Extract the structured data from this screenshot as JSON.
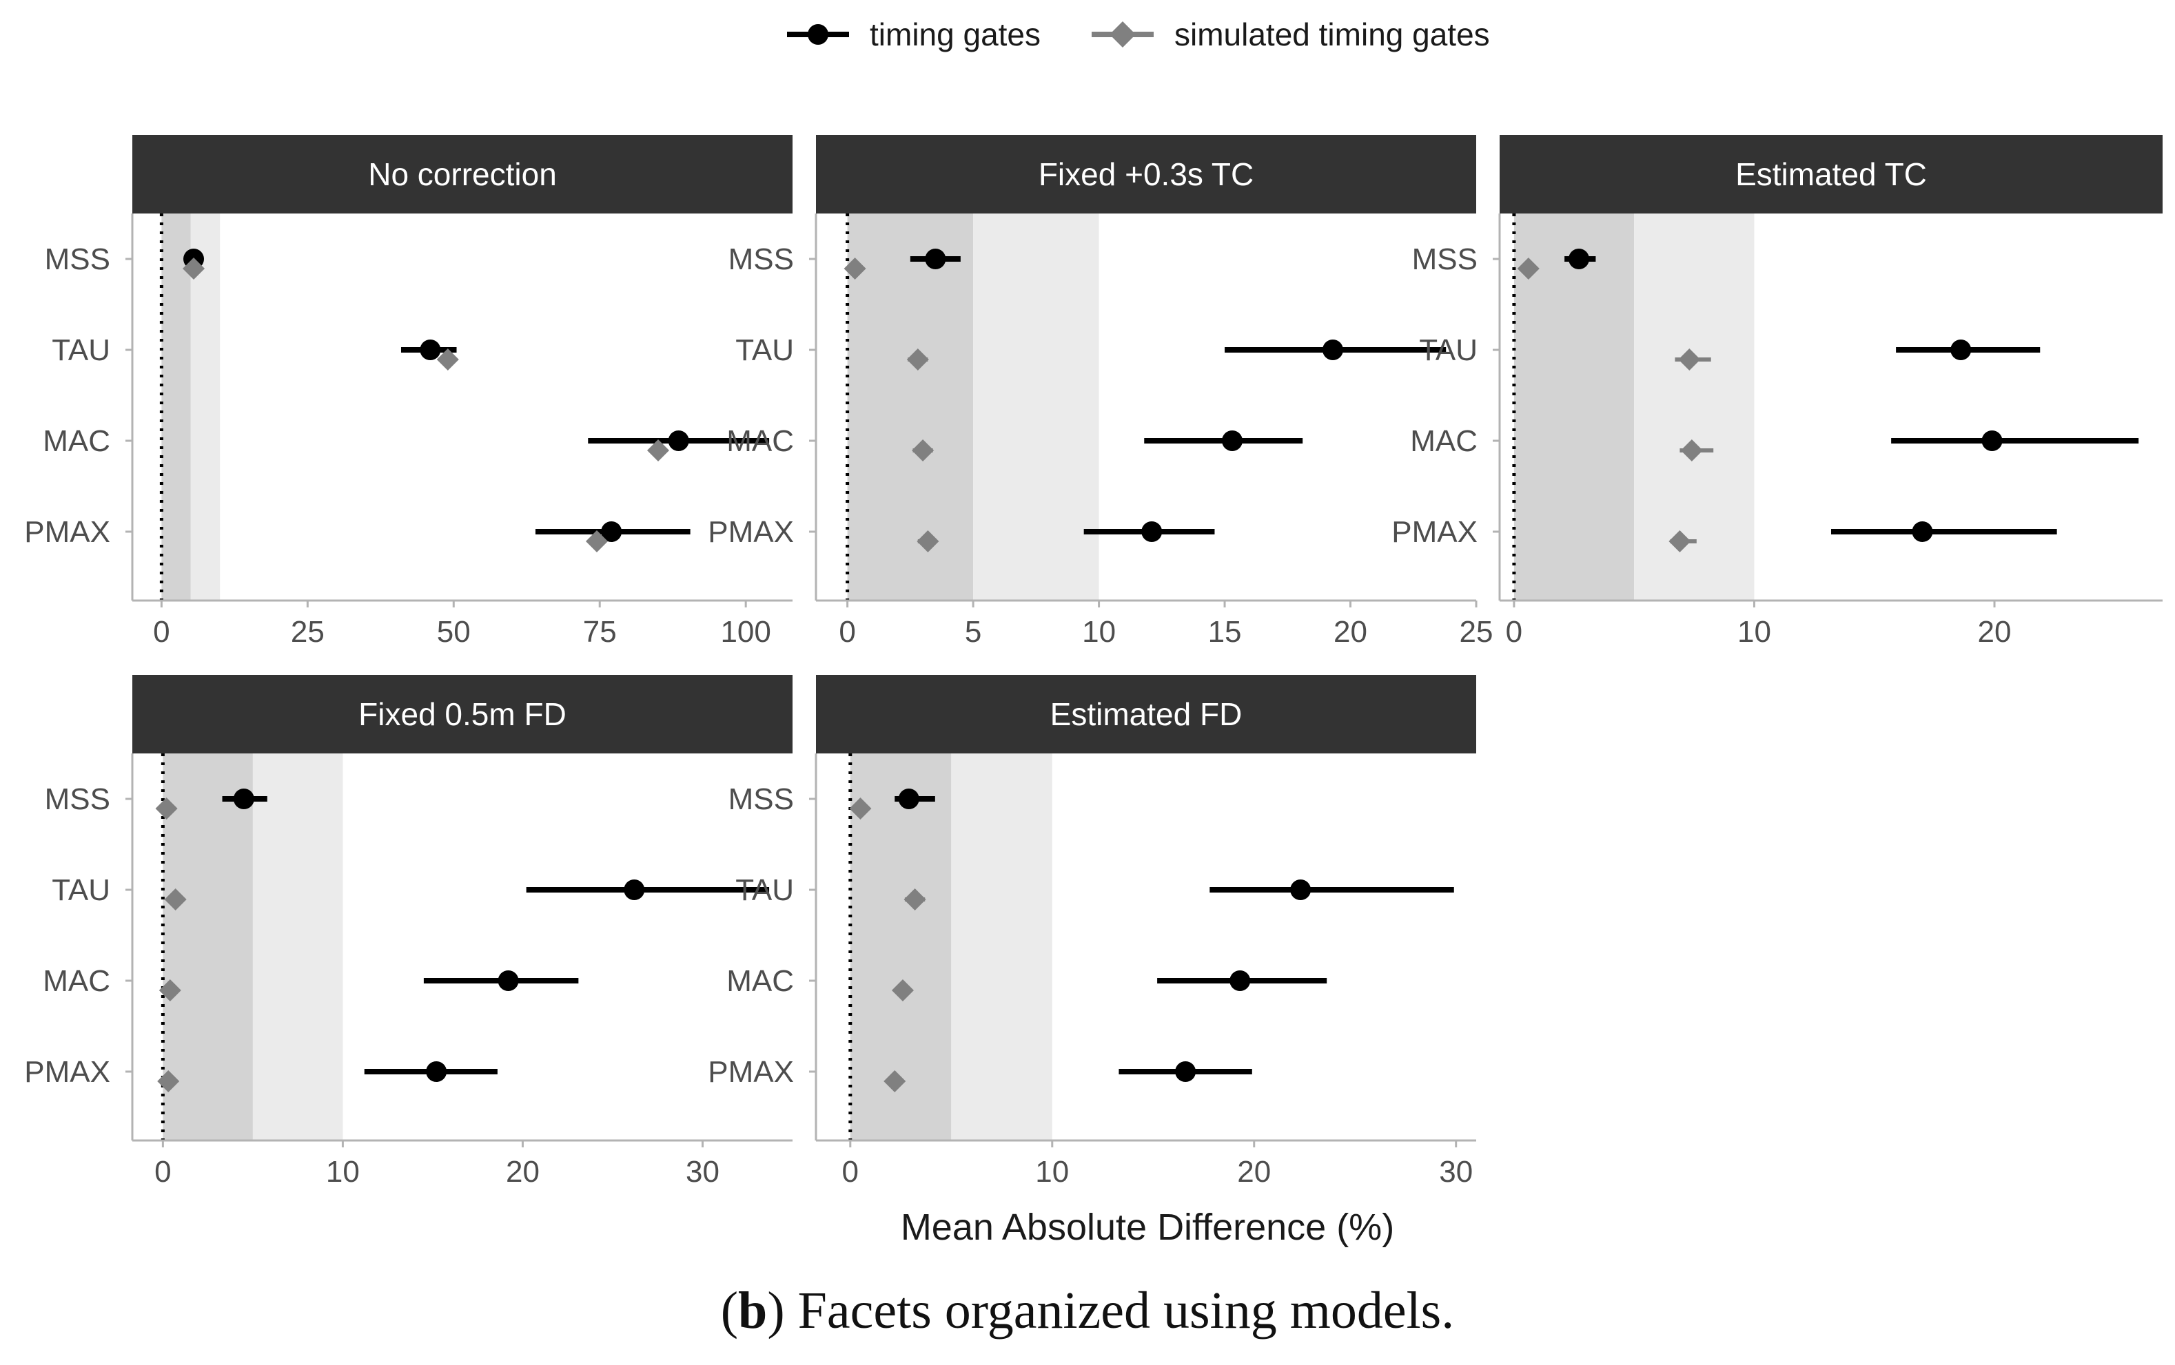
{
  "chart_data": {
    "type": "forest",
    "caption": {
      "prefix": "(",
      "label": "b",
      "suffix": ") Facets organized using models."
    },
    "xlabel": "Mean Absolute Difference (%)",
    "legend": {
      "position": "top",
      "entries": [
        {
          "name": "timing gates",
          "marker": "circle",
          "color": "#000000"
        },
        {
          "name": "simulated timing gates",
          "marker": "diamond",
          "color": "#808080"
        }
      ]
    },
    "categories": [
      "MSS",
      "TAU",
      "MAC",
      "PMAX"
    ],
    "reference_bands": [
      {
        "from": 0,
        "to": 5,
        "color": "#d3d3d3"
      },
      {
        "from": 5,
        "to": 10,
        "color": "#ebebeb"
      }
    ],
    "reference_line": 0,
    "panels": [
      {
        "title": "No correction",
        "xlim": [
          -5,
          108
        ],
        "xticks": [
          0,
          25,
          50,
          75,
          100
        ],
        "series": [
          {
            "name": "timing gates",
            "points": [
              {
                "category": "MSS",
                "value": 5.5,
                "low": 5.0,
                "high": 6.0
              },
              {
                "category": "TAU",
                "value": 46.0,
                "low": 41.0,
                "high": 50.5
              },
              {
                "category": "MAC",
                "value": 88.5,
                "low": 73.0,
                "high": 104.0
              },
              {
                "category": "PMAX",
                "value": 77.0,
                "low": 64.0,
                "high": 90.5
              }
            ]
          },
          {
            "name": "simulated timing gates",
            "points": [
              {
                "category": "MSS",
                "value": 5.5,
                "low": 5.3,
                "high": 5.7
              },
              {
                "category": "TAU",
                "value": 49.0,
                "low": 48.7,
                "high": 49.3
              },
              {
                "category": "MAC",
                "value": 85.0,
                "low": 84.7,
                "high": 85.3
              },
              {
                "category": "PMAX",
                "value": 74.5,
                "low": 74.2,
                "high": 74.8
              }
            ]
          }
        ]
      },
      {
        "title": "Fixed +0.3s TC",
        "xlim": [
          -1.25,
          25
        ],
        "xticks": [
          0,
          5,
          10,
          15,
          20,
          25
        ],
        "series": [
          {
            "name": "timing gates",
            "points": [
              {
                "category": "MSS",
                "value": 3.5,
                "low": 2.5,
                "high": 4.5
              },
              {
                "category": "TAU",
                "value": 19.3,
                "low": 15.0,
                "high": 23.8
              },
              {
                "category": "MAC",
                "value": 15.3,
                "low": 11.8,
                "high": 18.1
              },
              {
                "category": "PMAX",
                "value": 12.1,
                "low": 9.4,
                "high": 14.6
              }
            ]
          },
          {
            "name": "simulated timing gates",
            "points": [
              {
                "category": "MSS",
                "value": 0.3,
                "low": 0.2,
                "high": 0.4
              },
              {
                "category": "TAU",
                "value": 2.8,
                "low": 2.4,
                "high": 3.2
              },
              {
                "category": "MAC",
                "value": 3.0,
                "low": 2.6,
                "high": 3.4
              },
              {
                "category": "PMAX",
                "value": 3.2,
                "low": 2.8,
                "high": 3.5
              }
            ]
          }
        ]
      },
      {
        "title": "Estimated TC",
        "xlim": [
          -0.6,
          27
        ],
        "xticks": [
          0,
          10,
          20
        ],
        "series": [
          {
            "name": "timing gates",
            "points": [
              {
                "category": "MSS",
                "value": 2.7,
                "low": 2.1,
                "high": 3.4
              },
              {
                "category": "TAU",
                "value": 18.6,
                "low": 15.9,
                "high": 21.9
              },
              {
                "category": "MAC",
                "value": 19.9,
                "low": 15.7,
                "high": 26.0
              },
              {
                "category": "PMAX",
                "value": 17.0,
                "low": 13.2,
                "high": 22.6
              }
            ]
          },
          {
            "name": "simulated timing gates",
            "points": [
              {
                "category": "MSS",
                "value": 0.6,
                "low": 0.5,
                "high": 0.7
              },
              {
                "category": "TAU",
                "value": 7.3,
                "low": 6.7,
                "high": 8.2
              },
              {
                "category": "MAC",
                "value": 7.4,
                "low": 6.9,
                "high": 8.3
              },
              {
                "category": "PMAX",
                "value": 6.9,
                "low": 6.5,
                "high": 7.6
              }
            ]
          }
        ]
      },
      {
        "title": "Fixed 0.5m FD",
        "xlim": [
          -1.7,
          35
        ],
        "xticks": [
          0,
          10,
          20,
          30
        ],
        "series": [
          {
            "name": "timing gates",
            "points": [
              {
                "category": "MSS",
                "value": 4.5,
                "low": 3.3,
                "high": 5.8
              },
              {
                "category": "TAU",
                "value": 26.2,
                "low": 20.2,
                "high": 33.7
              },
              {
                "category": "MAC",
                "value": 19.2,
                "low": 14.5,
                "high": 23.1
              },
              {
                "category": "PMAX",
                "value": 15.2,
                "low": 11.2,
                "high": 18.6
              }
            ]
          },
          {
            "name": "simulated timing gates",
            "points": [
              {
                "category": "MSS",
                "value": 0.2,
                "low": 0.1,
                "high": 0.3
              },
              {
                "category": "TAU",
                "value": 0.7,
                "low": 0.6,
                "high": 0.8
              },
              {
                "category": "MAC",
                "value": 0.4,
                "low": 0.3,
                "high": 0.5
              },
              {
                "category": "PMAX",
                "value": 0.3,
                "low": 0.2,
                "high": 0.4
              }
            ]
          }
        ]
      },
      {
        "title": "Estimated FD",
        "xlim": [
          -1.7,
          31
        ],
        "xticks": [
          0,
          10,
          20,
          30
        ],
        "series": [
          {
            "name": "timing gates",
            "points": [
              {
                "category": "MSS",
                "value": 2.9,
                "low": 2.2,
                "high": 4.2
              },
              {
                "category": "TAU",
                "value": 22.3,
                "low": 17.8,
                "high": 29.9
              },
              {
                "category": "MAC",
                "value": 19.3,
                "low": 15.2,
                "high": 23.6
              },
              {
                "category": "PMAX",
                "value": 16.6,
                "low": 13.3,
                "high": 19.9
              }
            ]
          },
          {
            "name": "simulated timing gates",
            "points": [
              {
                "category": "MSS",
                "value": 0.5,
                "low": 0.4,
                "high": 0.6
              },
              {
                "category": "TAU",
                "value": 3.2,
                "low": 2.7,
                "high": 3.7
              },
              {
                "category": "MAC",
                "value": 2.6,
                "low": 2.3,
                "high": 3.0
              },
              {
                "category": "PMAX",
                "value": 2.2,
                "low": 2.0,
                "high": 2.5
              }
            ]
          }
        ]
      }
    ]
  }
}
